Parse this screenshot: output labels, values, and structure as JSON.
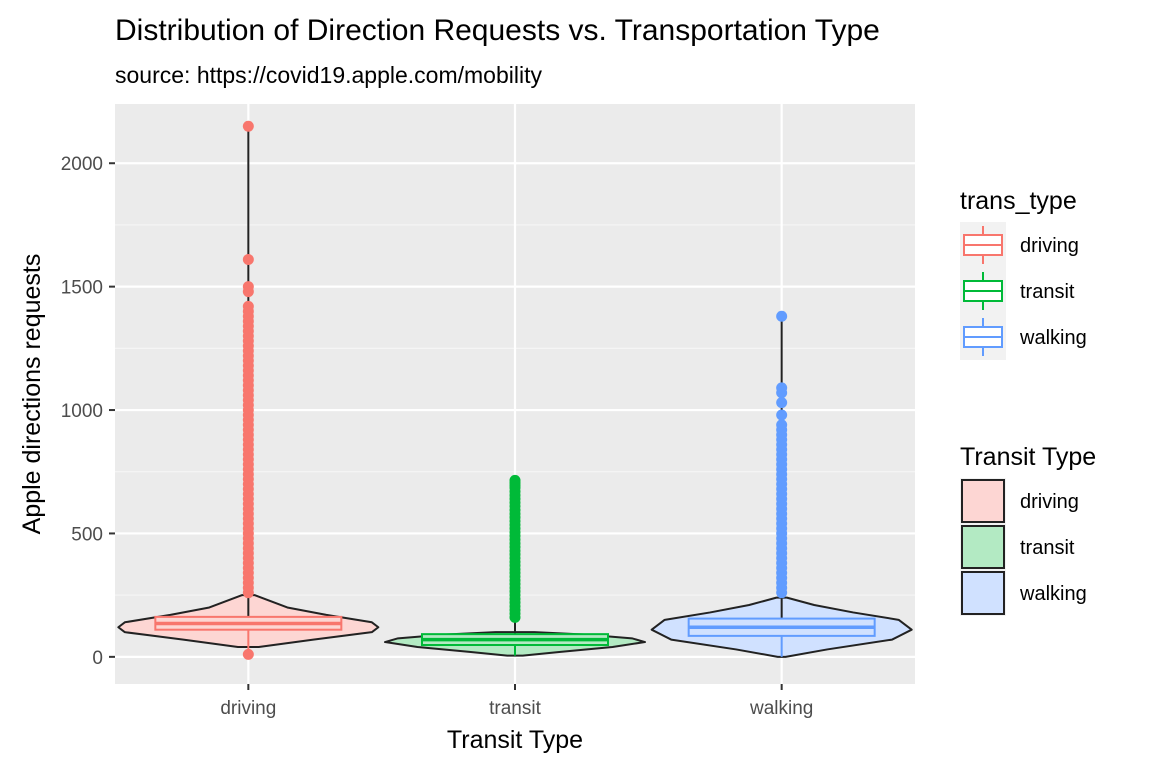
{
  "chart_data": {
    "type": "violin",
    "title": "Distribution of Direction Requests vs. Transportation Type",
    "subtitle": "source: https://covid19.apple.com/mobility",
    "xlabel": "Transit Type",
    "ylabel": "Apple directions requests",
    "categories": [
      "driving",
      "transit",
      "walking"
    ],
    "ylim": [
      -110,
      2240
    ],
    "yticks": [
      0,
      500,
      1000,
      1500,
      2000
    ],
    "grid": true,
    "series": [
      {
        "name": "driving",
        "color": "#F8766D",
        "box": {
          "q1": 110,
          "median": 135,
          "q3": 162,
          "whisker_low": 20,
          "whisker_high": 2150
        },
        "violin_min": 40,
        "violin_max": 250,
        "violin_profile": [
          [
            40,
            0.08
          ],
          [
            70,
            0.5
          ],
          [
            100,
            0.95
          ],
          [
            120,
            1.0
          ],
          [
            140,
            0.95
          ],
          [
            170,
            0.6
          ],
          [
            200,
            0.3
          ],
          [
            250,
            0.05
          ]
        ],
        "outliers_high": [
          2150,
          1610,
          1500,
          1480,
          1420,
          1400,
          1380,
          1360,
          1340,
          1320,
          1300,
          1280,
          1260,
          1240,
          1220,
          1200,
          1180,
          1160,
          1140,
          1120,
          1100,
          1080,
          1060,
          1040,
          1020,
          1000,
          980,
          960,
          940,
          920,
          900,
          880,
          860,
          840,
          820,
          800,
          780,
          760,
          740,
          720,
          700,
          680,
          660,
          640,
          620,
          600,
          580,
          560,
          540,
          520,
          500,
          480,
          460,
          440,
          420,
          400,
          380,
          360,
          340,
          320,
          300,
          280,
          260
        ],
        "outliers_low": [
          10
        ]
      },
      {
        "name": "transit",
        "color": "#00BA38",
        "box": {
          "q1": 48,
          "median": 70,
          "q3": 92,
          "whisker_low": 5,
          "whisker_high": 150
        },
        "violin_min": 5,
        "violin_max": 100,
        "violin_profile": [
          [
            5,
            0.06
          ],
          [
            20,
            0.35
          ],
          [
            40,
            0.75
          ],
          [
            60,
            1.0
          ],
          [
            75,
            0.9
          ],
          [
            90,
            0.55
          ],
          [
            100,
            0.15
          ]
        ],
        "outliers_high": [
          715,
          705,
          695,
          685,
          670,
          655,
          640,
          625,
          610,
          595,
          580,
          565,
          550,
          535,
          520,
          505,
          490,
          475,
          460,
          445,
          430,
          415,
          400,
          385,
          370,
          355,
          340,
          325,
          310,
          295,
          280,
          265,
          250,
          235,
          220,
          205,
          190,
          175,
          160
        ],
        "outliers_low": []
      },
      {
        "name": "walking",
        "color": "#619CFF",
        "box": {
          "q1": 85,
          "median": 120,
          "q3": 155,
          "whisker_low": 0,
          "whisker_high": 1380
        },
        "violin_min": 0,
        "violin_max": 240,
        "violin_profile": [
          [
            0,
            0.03
          ],
          [
            30,
            0.35
          ],
          [
            70,
            0.85
          ],
          [
            110,
            1.0
          ],
          [
            150,
            0.9
          ],
          [
            180,
            0.55
          ],
          [
            210,
            0.25
          ],
          [
            240,
            0.04
          ]
        ],
        "outliers_high": [
          1380,
          1090,
          1070,
          1030,
          980,
          940,
          920,
          900,
          880,
          860,
          840,
          820,
          800,
          780,
          760,
          740,
          720,
          700,
          680,
          660,
          640,
          620,
          600,
          580,
          560,
          540,
          520,
          500,
          480,
          460,
          440,
          420,
          400,
          380,
          360,
          340,
          320,
          300,
          280,
          260
        ],
        "outliers_low": []
      }
    ],
    "legend": [
      {
        "title": "trans_type",
        "kind": "box",
        "items": [
          "driving",
          "transit",
          "walking"
        ]
      },
      {
        "title": "Transit Type",
        "kind": "fill",
        "items": [
          "driving",
          "transit",
          "walking"
        ]
      }
    ],
    "legend_position": "right"
  }
}
